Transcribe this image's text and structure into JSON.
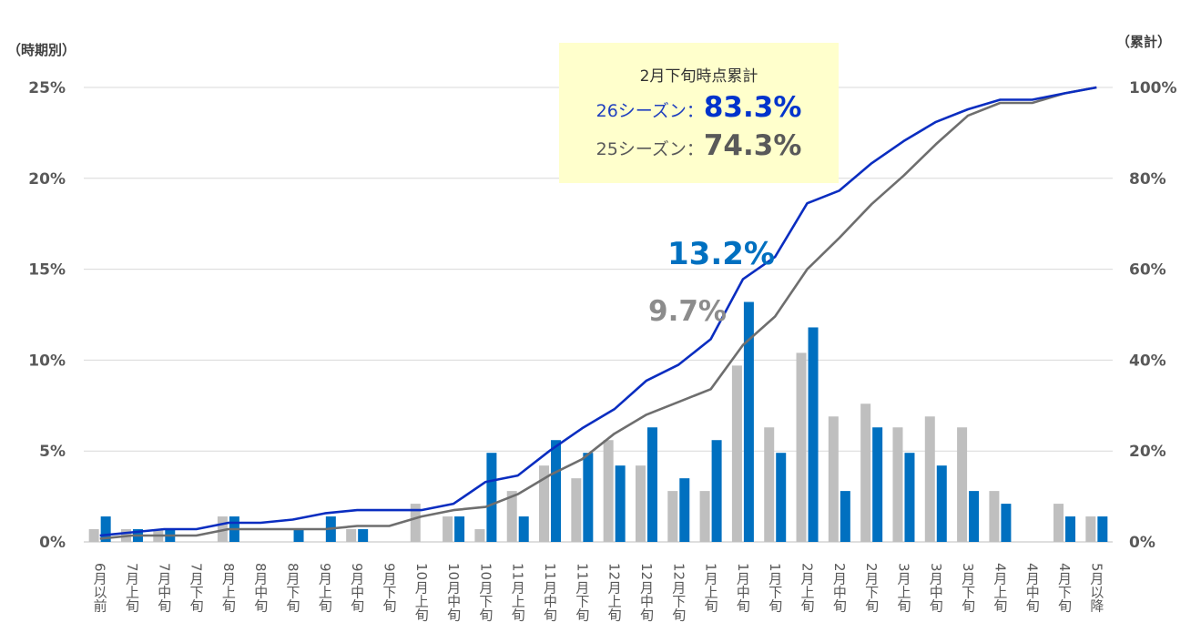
{
  "left_axis_title": "（時期別）",
  "right_axis_title": "（累計）",
  "callout": {
    "heading": "2月下旬時点累計",
    "s26_label": "26シーズン：",
    "s26_value": "83.3%",
    "s25_label": "25シーズン：",
    "s25_value": "74.3%"
  },
  "annotations": {
    "peak_26": "13.2%",
    "peak_25": "9.7%"
  },
  "colors": {
    "bar_25": "#BFBFBF",
    "bar_26": "#0070C0",
    "line_26": "#0A2DC0",
    "line_25": "#6E6E6E",
    "grid": "#D9D9D9",
    "tick_text": "#595959",
    "peak_26": "#0070C0",
    "peak_25": "#8C8C8C"
  },
  "chart_data": {
    "type": "bar",
    "categories": [
      "6月以前",
      "7月上旬",
      "7月中旬",
      "7月下旬",
      "8月上旬",
      "8月中旬",
      "8月下旬",
      "9月上旬",
      "9月中旬",
      "9月下旬",
      "10月上旬",
      "10月中旬",
      "10月下旬",
      "11月上旬",
      "11月中旬",
      "11月下旬",
      "12月上旬",
      "12月中旬",
      "12月下旬",
      "1月上旬",
      "1月中旬",
      "1月下旬",
      "2月上旬",
      "2月中旬",
      "2月下旬",
      "3月上旬",
      "3月中旬",
      "3月下旬",
      "4月上旬",
      "4月中旬",
      "4月下旬",
      "5月以降"
    ],
    "series": [
      {
        "values": [
          0.7,
          0.7,
          0.7,
          0,
          1.4,
          0,
          0,
          0,
          0.7,
          0,
          2.1,
          1.4,
          0.7,
          2.8,
          4.2,
          3.5,
          5.6,
          4.2,
          2.8,
          2.8,
          9.7,
          6.3,
          10.4,
          6.9,
          7.6,
          6.3,
          6.9,
          6.3,
          2.8,
          0,
          2.1,
          1.4
        ]
      },
      {
        "values": [
          1.4,
          0.7,
          0.7,
          0,
          1.4,
          0,
          0.7,
          1.4,
          0.7,
          0,
          0,
          1.4,
          4.9,
          1.4,
          5.6,
          4.9,
          4.2,
          6.3,
          3.5,
          5.6,
          13.2,
          4.9,
          11.8,
          2.8,
          6.3,
          4.9,
          4.2,
          2.8,
          2.1,
          0,
          1.4,
          1.4
        ]
      },
      {
        "axis": "right",
        "values": [
          1.4,
          2.1,
          2.8,
          2.8,
          4.2,
          4.2,
          4.9,
          6.3,
          7.0,
          7.0,
          7.0,
          8.4,
          13.2,
          14.6,
          20.1,
          25.0,
          29.2,
          35.5,
          39.0,
          44.6,
          57.8,
          62.7,
          74.5,
          77.3,
          83.3,
          88.2,
          92.4,
          95.2,
          97.3,
          97.3,
          98.7,
          100.0
        ]
      },
      {
        "axis": "right",
        "values": [
          0.7,
          1.4,
          1.4,
          1.4,
          2.8,
          2.8,
          2.8,
          2.8,
          3.5,
          3.5,
          5.6,
          7.0,
          7.7,
          10.5,
          14.7,
          18.2,
          23.8,
          28.0,
          30.8,
          33.6,
          43.3,
          49.6,
          60.0,
          66.9,
          74.3,
          80.6,
          87.5,
          93.8,
          96.6,
          96.6,
          98.7,
          100.0
        ]
      }
    ],
    "y_left": {
      "min": 0,
      "max": 25,
      "ticks": [
        "0%",
        "5%",
        "10%",
        "15%",
        "20%",
        "25%"
      ]
    },
    "y_right": {
      "min": 0,
      "max": 100,
      "ticks": [
        "0%",
        "20%",
        "40%",
        "60%",
        "80%",
        "100%"
      ]
    },
    "grid": true
  }
}
